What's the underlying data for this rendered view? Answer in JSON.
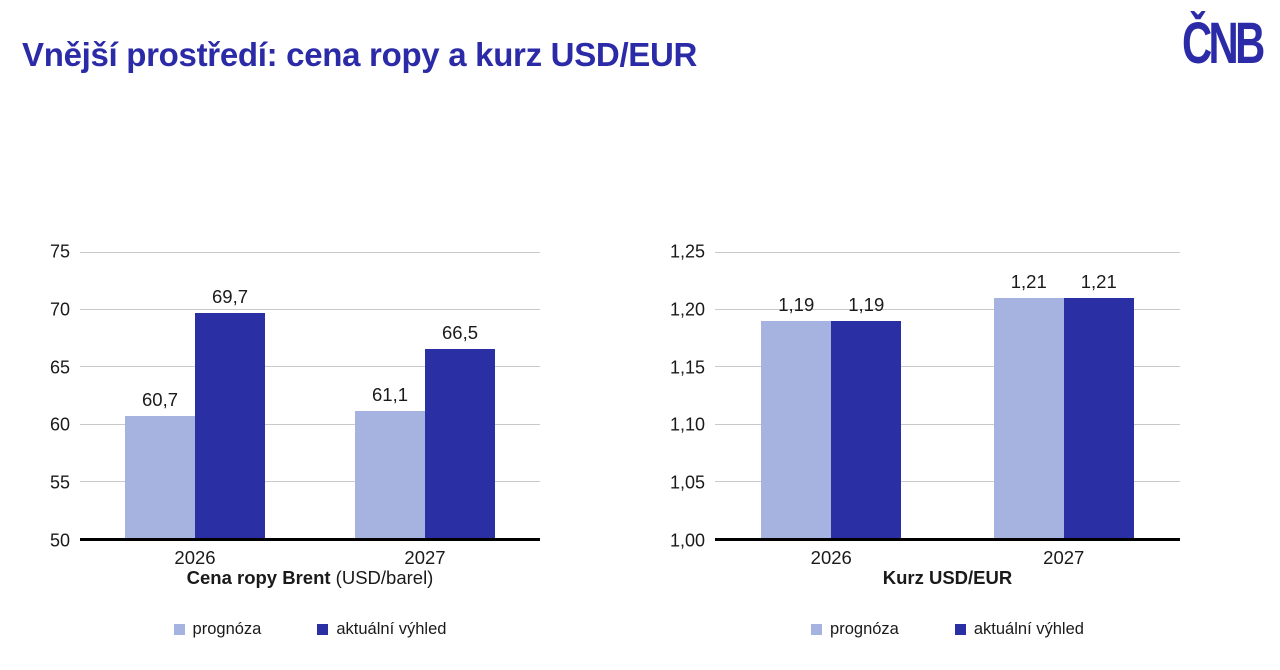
{
  "page": {
    "title": "Vnější prostředí: cena ropy a kurz USD/EUR",
    "logo": "ČNB"
  },
  "colors": {
    "brand_blue": "#2B2BA8",
    "prognoza_bar": "#A6B2E0",
    "aktualni_vyhled_bar": "#2A2FA4",
    "gridline": "#C9C9C9",
    "axis_line": "#000000"
  },
  "chart_data": [
    {
      "type": "bar",
      "axis_title_bold": "Cena ropy Brent",
      "axis_title_rest": " (USD/barel)",
      "categories": [
        "2026",
        "2027"
      ],
      "series": [
        {
          "name": "prognóza",
          "color": "#A6B2E0",
          "values": [
            60.7,
            61.1
          ],
          "labels": [
            "60,7",
            "61,1"
          ]
        },
        {
          "name": "aktuální výhled",
          "color": "#2A2FA4",
          "values": [
            69.7,
            66.5
          ],
          "labels": [
            "69,7",
            "66,5"
          ]
        }
      ],
      "ylim": [
        50,
        75
      ],
      "yticks": [
        {
          "v": 75,
          "label": "75"
        },
        {
          "v": 70,
          "label": "70"
        },
        {
          "v": 65,
          "label": "65"
        },
        {
          "v": 60,
          "label": "60"
        },
        {
          "v": 55,
          "label": "55"
        },
        {
          "v": 50,
          "label": "50"
        }
      ],
      "grid": true,
      "legend_position": "bottom"
    },
    {
      "type": "bar",
      "axis_title_bold": "Kurz USD/EUR",
      "axis_title_rest": "",
      "categories": [
        "2026",
        "2027"
      ],
      "series": [
        {
          "name": "prognóza",
          "color": "#A6B2E0",
          "values": [
            1.19,
            1.21
          ],
          "labels": [
            "1,19",
            "1,21"
          ]
        },
        {
          "name": "aktuální výhled",
          "color": "#2A2FA4",
          "values": [
            1.19,
            1.21
          ],
          "labels": [
            "1,19",
            "1,21"
          ]
        }
      ],
      "ylim": [
        1.0,
        1.25
      ],
      "yticks": [
        {
          "v": 1.25,
          "label": "1,25"
        },
        {
          "v": 1.2,
          "label": "1,20"
        },
        {
          "v": 1.15,
          "label": "1,15"
        },
        {
          "v": 1.1,
          "label": "1,10"
        },
        {
          "v": 1.05,
          "label": "1,05"
        },
        {
          "v": 1.0,
          "label": "1,00"
        }
      ],
      "grid": true,
      "legend_position": "bottom"
    }
  ]
}
